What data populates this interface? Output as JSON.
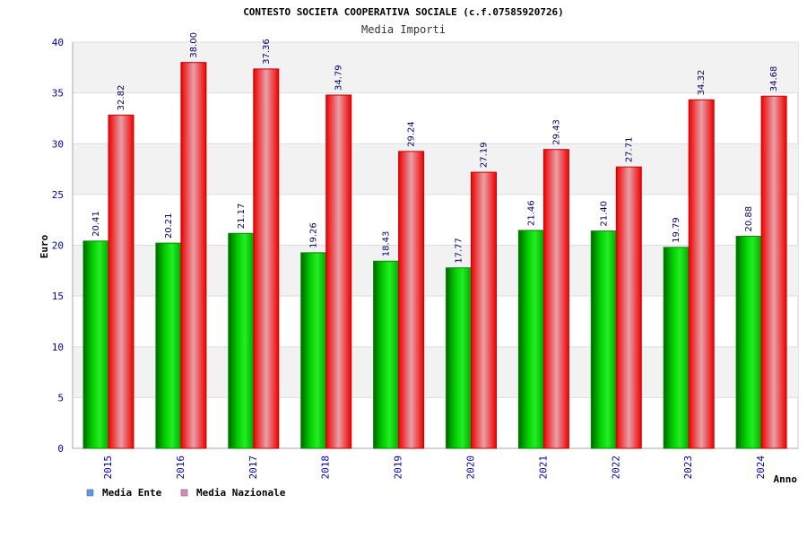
{
  "chart_data": {
    "type": "bar",
    "title": "CONTESTO SOCIETA COOPERATIVA SOCIALE (c.f.07585920726)",
    "subtitle": "Media Importi",
    "xlabel": "Anno",
    "ylabel": "Euro",
    "ylim": [
      0,
      40
    ],
    "yticks": [
      0,
      5,
      10,
      15,
      20,
      25,
      30,
      35,
      40
    ],
    "grid": true,
    "legend_position": "bottom-left",
    "categories": [
      "2015",
      "2016",
      "2017",
      "2018",
      "2019",
      "2020",
      "2021",
      "2022",
      "2023",
      "2024"
    ],
    "series": [
      {
        "name": "Media Ente",
        "color": "#00cc00",
        "legend_color": "#5599ee",
        "values": [
          20.41,
          20.21,
          21.17,
          19.26,
          18.43,
          17.77,
          21.46,
          21.4,
          19.79,
          20.88
        ],
        "labels": [
          "20.41",
          "20.21",
          "21.17",
          "19.26",
          "18.43",
          "17.77",
          "21.46",
          "21.40",
          "19.79",
          "20.88"
        ]
      },
      {
        "name": "Media Nazionale",
        "color": "#ee0000",
        "legend_color": "#dd88bb",
        "values": [
          32.82,
          38.0,
          37.36,
          34.79,
          29.24,
          27.19,
          29.43,
          27.71,
          34.32,
          34.68
        ],
        "labels": [
          "32.82",
          "38.00",
          "37.36",
          "34.79",
          "29.24",
          "27.19",
          "29.43",
          "27.71",
          "34.32",
          "34.68"
        ]
      }
    ]
  }
}
